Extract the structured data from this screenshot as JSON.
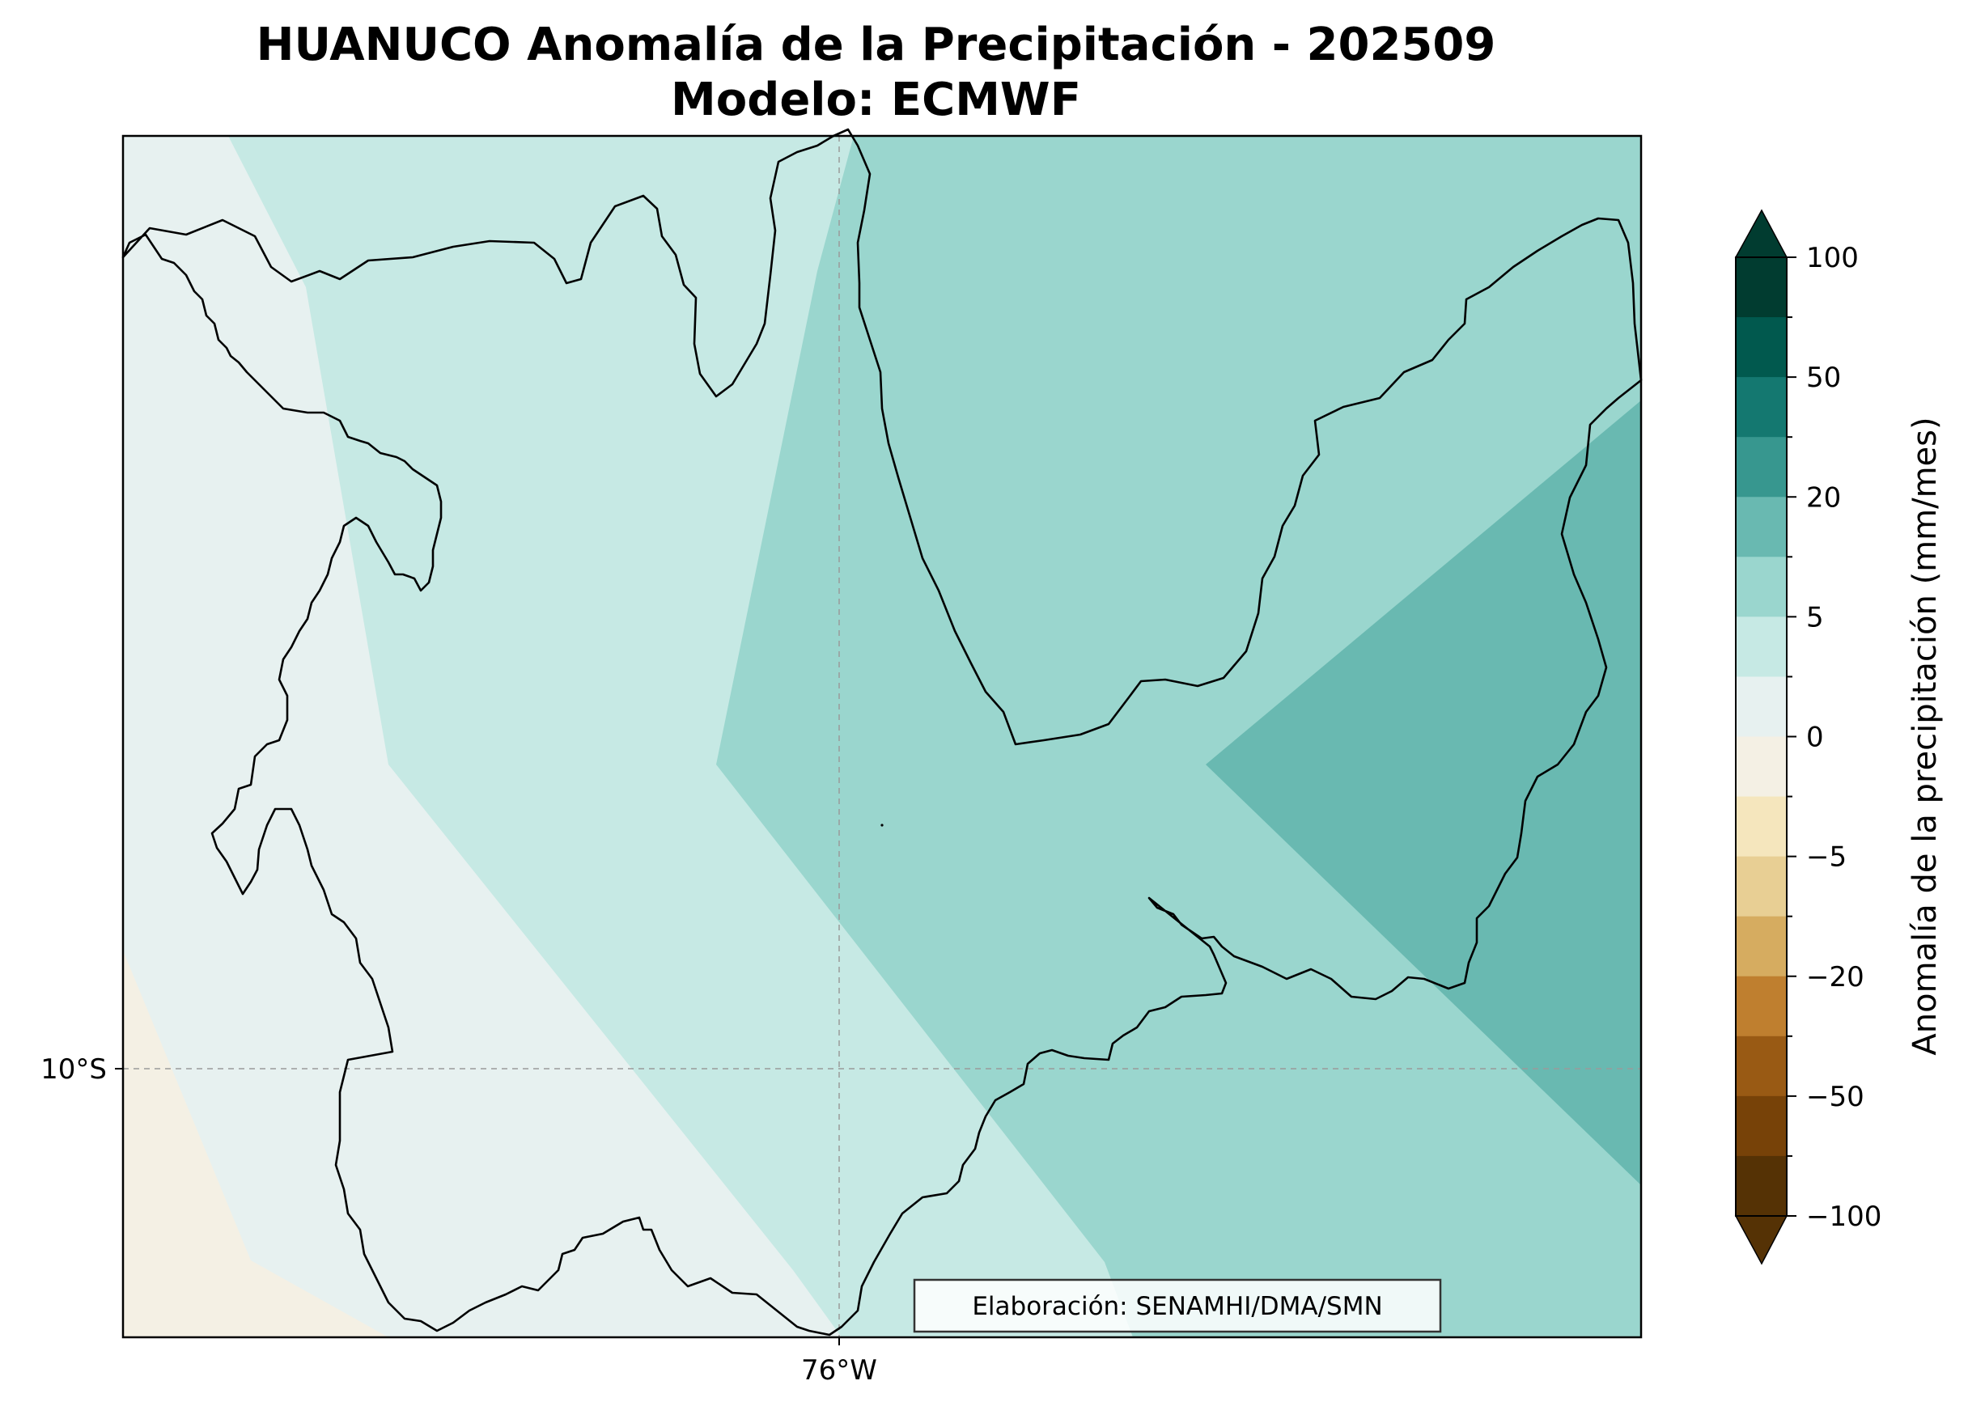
{
  "map": {
    "title_line1": "HUANUCO Anomalía de la Precipitación - 202509",
    "title_line2": "Modelo: ECMWF",
    "lat_label": "10°S",
    "lon_label": "76°W",
    "credit": "Elaboración: SENAMHI/DMA/SMN"
  },
  "colorbar": {
    "label": "Anomalía de la precipitación (mm/mes)",
    "ticks": [
      "100",
      "50",
      "20",
      "5",
      "0",
      "−5",
      "−20",
      "−50",
      "−100"
    ],
    "colors_top_to_bottom": [
      "#013c30",
      "#01594e",
      "#147870",
      "#37978f",
      "#69b9b1",
      "#9ad6ce",
      "#c6e9e4",
      "#e7f1f0",
      "#f4f0e4",
      "#f5e6bd",
      "#e8cf94",
      "#d6ac60",
      "#bf7f2f",
      "#995a14",
      "#774208",
      "#553205"
    ],
    "extend_top_color": "#013c30",
    "extend_bottom_color": "#553205"
  },
  "legend_categories": {
    "light_brown": "#f4f0e4",
    "pale_teal": "#e7f1f0",
    "light_teal": "#c6e9e4",
    "mid_teal": "#9ad6ce",
    "teal": "#69b9b1",
    "boundary_color": "#000000"
  }
}
